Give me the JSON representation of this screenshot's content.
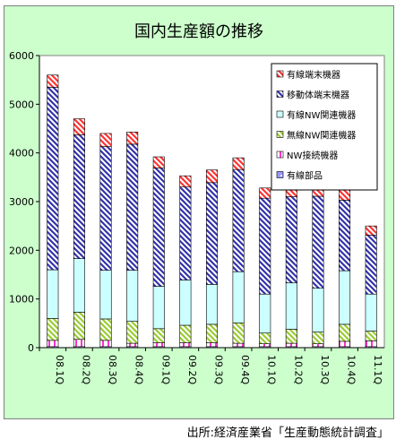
{
  "source_note": "出所:経済産業省「生産動態統計調査」",
  "colors": {
    "frame_bg": "#ccffcc",
    "plot_bg": "#ffffff",
    "wired_component": "#9999ff",
    "nw_connection": "#ff33cc",
    "wireless_nw": "#99cc33",
    "wired_nw": "#ccffff",
    "mobile_terminal": "#3333aa",
    "wired_terminal": "#ff3333"
  },
  "chart_data": {
    "type": "bar",
    "stacked": true,
    "title": "国内生産額の推移",
    "xlabel": "",
    "ylabel": "",
    "ylim": [
      0,
      6000
    ],
    "yticks": [
      0,
      1000,
      2000,
      3000,
      4000,
      5000,
      6000
    ],
    "grid": false,
    "legend_position": "top-right",
    "categories": [
      "08.1Q",
      "08.2Q",
      "08.3Q",
      "08.4Q",
      "09.1Q",
      "09.2Q",
      "09.3Q",
      "09.4Q",
      "10.1Q",
      "10.2Q",
      "10.3Q",
      "10.4Q",
      "11.1Q"
    ],
    "series": [
      {
        "name": "有線部品",
        "color_key": "wired_component",
        "pattern": "dots",
        "values": [
          20,
          20,
          20,
          20,
          20,
          20,
          20,
          20,
          20,
          20,
          20,
          20,
          20
        ]
      },
      {
        "name": "NW接続機器",
        "color_key": "nw_connection",
        "pattern": "vlines",
        "values": [
          130,
          150,
          130,
          70,
          80,
          80,
          80,
          70,
          60,
          70,
          60,
          110,
          120
        ]
      },
      {
        "name": "無線NW関連機器",
        "color_key": "wireless_nw",
        "pattern": "diag",
        "values": [
          450,
          560,
          440,
          450,
          290,
          360,
          380,
          420,
          220,
          290,
          240,
          350,
          200
        ]
      },
      {
        "name": "有線NW関連機器",
        "color_key": "wired_nw",
        "pattern": "solid",
        "values": [
          1000,
          1100,
          1000,
          1050,
          870,
          930,
          820,
          1050,
          800,
          950,
          900,
          1100,
          760
        ]
      },
      {
        "name": "移動体端末機器",
        "color_key": "mobile_terminal",
        "pattern": "diag",
        "values": [
          3750,
          2540,
          2540,
          2590,
          2430,
          1910,
          2090,
          2100,
          1970,
          1770,
          1890,
          1450,
          1210
        ]
      },
      {
        "name": "有線端末機器",
        "color_key": "wired_terminal",
        "pattern": "diag",
        "values": [
          250,
          330,
          270,
          250,
          230,
          230,
          260,
          240,
          210,
          200,
          220,
          270,
          190
        ]
      }
    ]
  }
}
